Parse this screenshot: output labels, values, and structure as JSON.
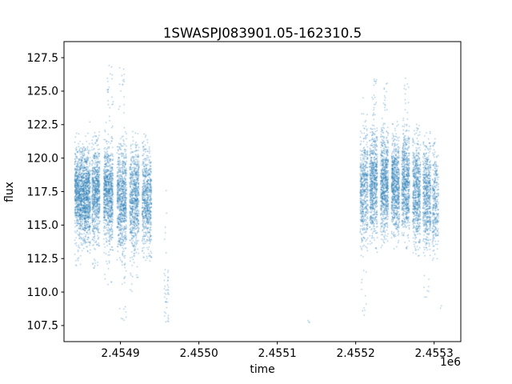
{
  "chart_data": {
    "type": "scatter",
    "title": "1SWASPJ083901.05-162310.5",
    "xlabel": "time",
    "ylabel": "flux",
    "offset_text": "1e6",
    "point_color": "#1f77b4",
    "background_color": "#ffffff",
    "grid": false,
    "legend": "none",
    "xlim": [
      2454828,
      2455334
    ],
    "ylim": [
      106.3,
      128.7
    ],
    "xticks": [
      {
        "value": 2454900,
        "label": "2.4549"
      },
      {
        "value": 2455000,
        "label": "2.4550"
      },
      {
        "value": 2455100,
        "label": "2.4551"
      },
      {
        "value": 2455200,
        "label": "2.4552"
      },
      {
        "value": 2455300,
        "label": "2.4553"
      }
    ],
    "yticks": [
      {
        "value": 107.5,
        "label": "107.5"
      },
      {
        "value": 110.0,
        "label": "110.0"
      },
      {
        "value": 112.5,
        "label": "112.5"
      },
      {
        "value": 115.0,
        "label": "115.0"
      },
      {
        "value": 117.5,
        "label": "117.5"
      },
      {
        "value": 120.0,
        "label": "120.0"
      },
      {
        "value": 122.5,
        "label": "122.5"
      },
      {
        "value": 125.0,
        "label": "125.0"
      },
      {
        "value": 127.5,
        "label": "127.5"
      }
    ],
    "bands": [
      {
        "t": 2454846,
        "dt": 5,
        "n": 700,
        "dist": "normal",
        "mu": 117.4,
        "sigma": 1.7,
        "lo": 113.2,
        "hi": 122.2
      },
      {
        "t": 2454846,
        "dt": 5,
        "n": 12,
        "dist": "uniform",
        "lo": 112.0,
        "hi": 113.2
      },
      {
        "t": 2454856,
        "dt": 5,
        "n": 750,
        "dist": "normal",
        "mu": 117.2,
        "sigma": 1.8,
        "lo": 112.9,
        "hi": 123.3
      },
      {
        "t": 2454868,
        "dt": 5,
        "n": 650,
        "dist": "normal",
        "mu": 117.5,
        "sigma": 1.8,
        "lo": 113.0,
        "hi": 122.3
      },
      {
        "t": 2454868,
        "dt": 4,
        "n": 10,
        "dist": "uniform",
        "lo": 111.8,
        "hi": 113.0
      },
      {
        "t": 2454884,
        "dt": 6,
        "n": 800,
        "dist": "normal",
        "mu": 117.3,
        "sigma": 1.9,
        "lo": 112.5,
        "hi": 122.8
      },
      {
        "t": 2454886,
        "dt": 4,
        "n": 22,
        "dist": "uniform",
        "lo": 122.8,
        "hi": 127.2
      },
      {
        "t": 2454884,
        "dt": 5,
        "n": 10,
        "dist": "uniform",
        "lo": 110.5,
        "hi": 112.5
      },
      {
        "t": 2454901,
        "dt": 6,
        "n": 750,
        "dist": "normal",
        "mu": 117.0,
        "sigma": 2.0,
        "lo": 111.8,
        "hi": 122.5
      },
      {
        "t": 2454901,
        "dt": 5,
        "n": 16,
        "dist": "uniform",
        "lo": 122.5,
        "hi": 127.0
      },
      {
        "t": 2454903,
        "dt": 5,
        "n": 14,
        "dist": "uniform",
        "lo": 107.8,
        "hi": 111.8
      },
      {
        "t": 2454917,
        "dt": 6,
        "n": 700,
        "dist": "normal",
        "mu": 116.9,
        "sigma": 2.0,
        "lo": 112.0,
        "hi": 122.2
      },
      {
        "t": 2454917,
        "dt": 5,
        "n": 10,
        "dist": "uniform",
        "lo": 109.8,
        "hi": 112.0
      },
      {
        "t": 2454933,
        "dt": 6,
        "n": 650,
        "dist": "normal",
        "mu": 116.9,
        "sigma": 1.9,
        "lo": 112.3,
        "hi": 121.9
      },
      {
        "t": 2454958,
        "dt": 3,
        "n": 38,
        "dist": "uniform",
        "lo": 107.8,
        "hi": 111.8
      },
      {
        "t": 2454957,
        "dt": 2,
        "n": 6,
        "dist": "uniform",
        "lo": 112.5,
        "hi": 120.5
      },
      {
        "t": 2455139,
        "dt": 2,
        "n": 3,
        "dist": "uniform",
        "lo": 107.7,
        "hi": 108.3
      },
      {
        "t": 2455210,
        "dt": 5,
        "n": 500,
        "dist": "normal",
        "mu": 117.5,
        "sigma": 2.0,
        "lo": 112.7,
        "hi": 122.3
      },
      {
        "t": 2455209,
        "dt": 4,
        "n": 12,
        "dist": "uniform",
        "lo": 108.3,
        "hi": 112.7
      },
      {
        "t": 2455210,
        "dt": 4,
        "n": 8,
        "dist": "uniform",
        "lo": 122.3,
        "hi": 124.6
      },
      {
        "t": 2455222,
        "dt": 5,
        "n": 650,
        "dist": "normal",
        "mu": 118.0,
        "sigma": 1.9,
        "lo": 113.0,
        "hi": 123.0
      },
      {
        "t": 2455223,
        "dt": 3,
        "n": 20,
        "dist": "uniform",
        "lo": 123.0,
        "hi": 126.4
      },
      {
        "t": 2455236,
        "dt": 5,
        "n": 700,
        "dist": "normal",
        "mu": 118.2,
        "sigma": 1.8,
        "lo": 113.2,
        "hi": 123.5
      },
      {
        "t": 2455237,
        "dt": 3,
        "n": 14,
        "dist": "uniform",
        "lo": 123.5,
        "hi": 125.9
      },
      {
        "t": 2455250,
        "dt": 5,
        "n": 700,
        "dist": "normal",
        "mu": 118.0,
        "sigma": 1.8,
        "lo": 113.0,
        "hi": 122.8
      },
      {
        "t": 2455263,
        "dt": 5,
        "n": 650,
        "dist": "normal",
        "mu": 118.1,
        "sigma": 1.9,
        "lo": 113.0,
        "hi": 123.2
      },
      {
        "t": 2455264,
        "dt": 3,
        "n": 12,
        "dist": "uniform",
        "lo": 123.2,
        "hi": 126.1
      },
      {
        "t": 2455277,
        "dt": 5,
        "n": 600,
        "dist": "normal",
        "mu": 117.6,
        "sigma": 2.0,
        "lo": 112.6,
        "hi": 122.6
      },
      {
        "t": 2455290,
        "dt": 5,
        "n": 550,
        "dist": "normal",
        "mu": 117.3,
        "sigma": 2.0,
        "lo": 112.5,
        "hi": 122.1
      },
      {
        "t": 2455290,
        "dt": 4,
        "n": 8,
        "dist": "uniform",
        "lo": 109.2,
        "hi": 112.5
      },
      {
        "t": 2455301,
        "dt": 4,
        "n": 300,
        "dist": "normal",
        "mu": 116.9,
        "sigma": 2.0,
        "lo": 112.4,
        "hi": 121.6
      },
      {
        "t": 2455308,
        "dt": 1,
        "n": 2,
        "dist": "uniform",
        "lo": 108.7,
        "hi": 109.1
      }
    ]
  }
}
